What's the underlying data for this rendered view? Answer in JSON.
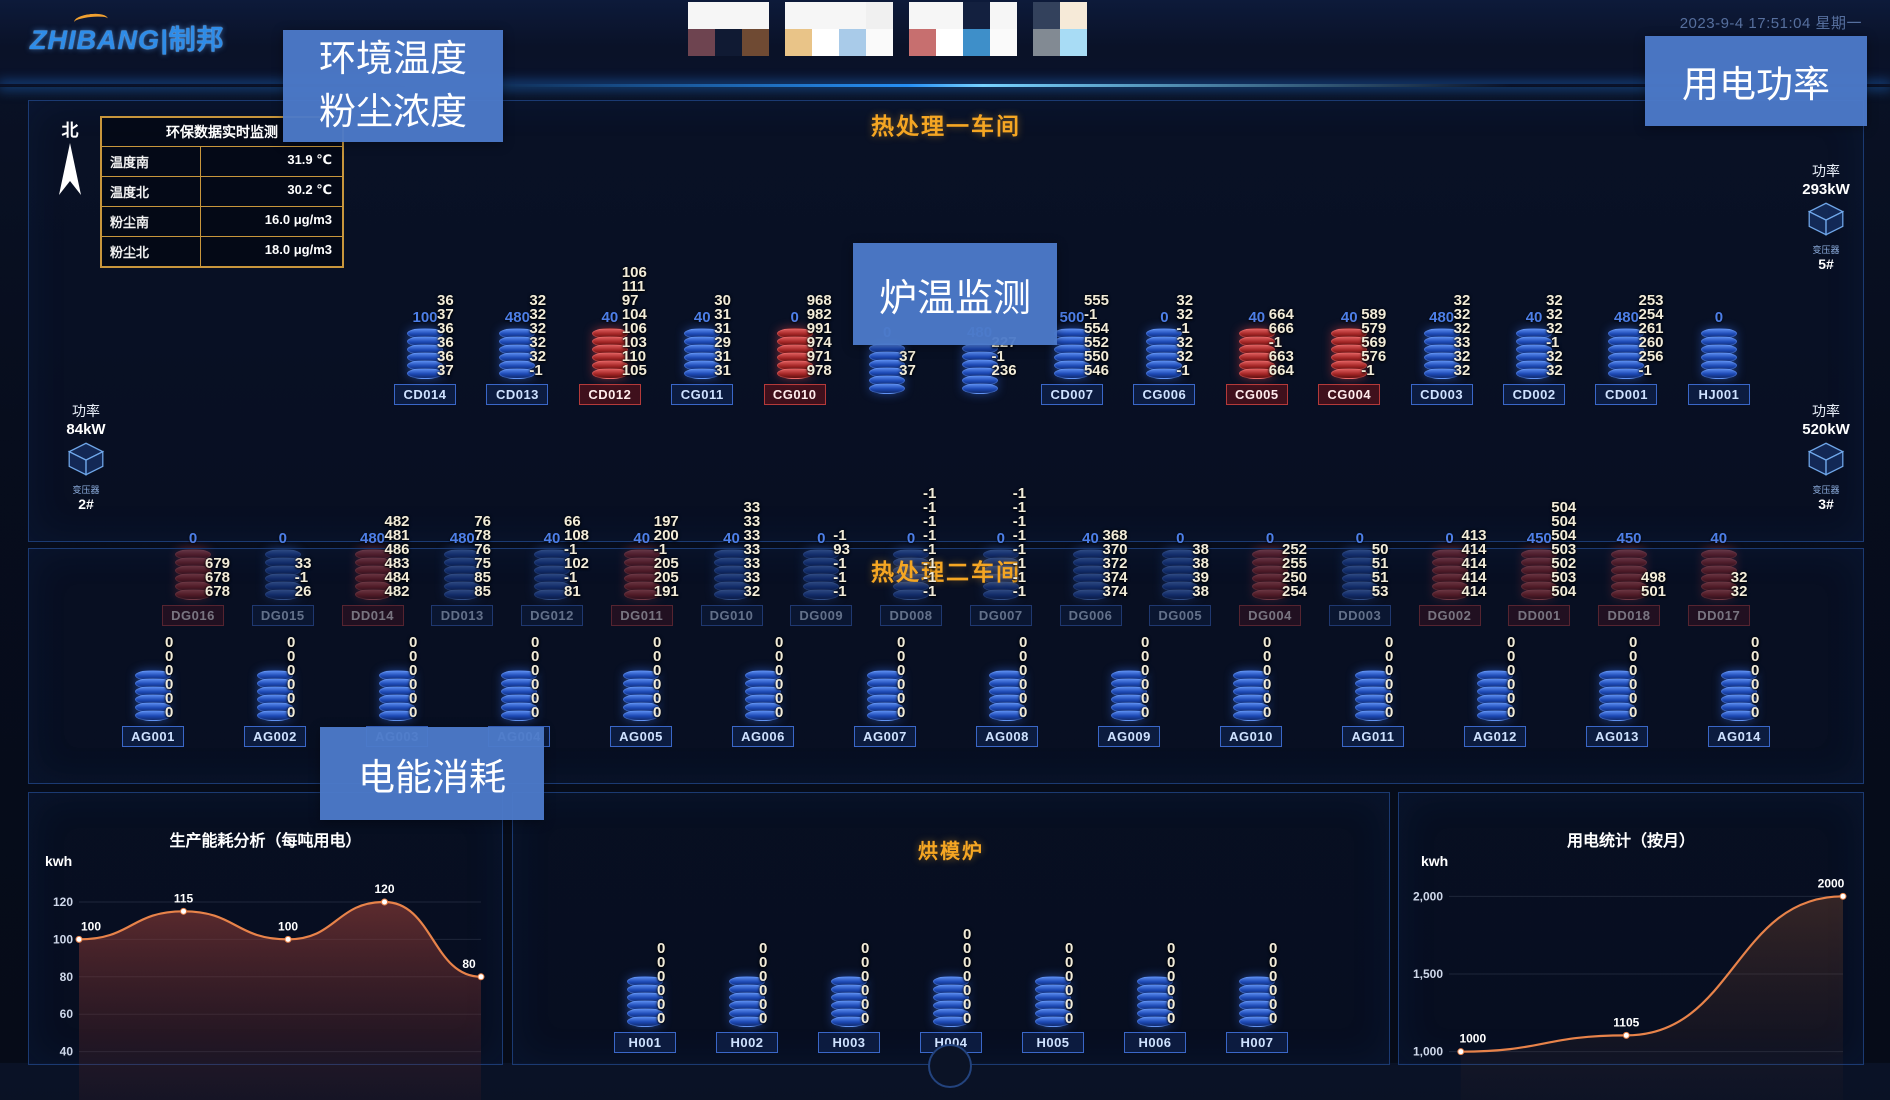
{
  "header": {
    "logo_en": "ZHIBANG",
    "logo_divider": "|",
    "logo_cn": "制邦",
    "timestamp": "2023-9-4 17:51:04 星期一",
    "mosaic_cards": [
      {
        "rows": [
          [
            "#f6f6f6",
            "#f6f6f6",
            "#f6f6f6"
          ],
          [
            "#6e4450",
            "#101a33",
            "#6f4a33"
          ]
        ]
      },
      {
        "rows": [
          [
            "#f6f6f6",
            "#f6f6f6",
            "#f6f6f6",
            "#f0f0f0"
          ],
          [
            "#e9c488",
            "#ffffff",
            "#a9cbe9",
            "#fafafa"
          ]
        ]
      },
      {
        "rows": [
          [
            "#f6f6f6",
            "#f6f6f6",
            "#13203f",
            "#f6f6f6"
          ],
          [
            "#c76f6f",
            "#ffffff",
            "#3e8fc9",
            "#fafafa"
          ]
        ]
      },
      {
        "rows": [
          [
            "#33415c",
            "#f6ead8"
          ],
          [
            "#828a93",
            "#a8dcf5"
          ]
        ]
      }
    ]
  },
  "overlays": {
    "env_line1": "环境温度",
    "env_line2": "粉尘浓度",
    "power": "用电功率",
    "furnace_temp": "炉温监测",
    "energy": "电能消耗"
  },
  "compass": {
    "north": "北"
  },
  "env_table": {
    "title": "环保数据实时监测",
    "rows": [
      {
        "label": "温度南",
        "value": "31.9 ℃"
      },
      {
        "label": "温度北",
        "value": "30.2 ℃"
      },
      {
        "label": "粉尘南",
        "value": "16.0 μg/m3"
      },
      {
        "label": "粉尘北",
        "value": "18.0 μg/m3"
      }
    ]
  },
  "workshop1": {
    "title": "热处理一车间",
    "power_row1_right": {
      "label": "功率",
      "value": "293kW",
      "device": "变压器",
      "unit": "5#"
    },
    "power_row2_left": {
      "label": "功率",
      "value": "84kW",
      "device": "变压器",
      "unit": "2#"
    },
    "power_row2_right": {
      "label": "功率",
      "value": "520kW",
      "device": "变压器",
      "unit": "3#"
    },
    "row1": [
      {
        "id": "CD014",
        "setpoint": "100",
        "color": "blue",
        "values": [
          "36",
          "37",
          "36",
          "36",
          "36",
          "37"
        ]
      },
      {
        "id": "CD013",
        "setpoint": "480",
        "color": "blue",
        "values": [
          "32",
          "32",
          "32",
          "32",
          "32",
          "-1"
        ]
      },
      {
        "id": "CD012",
        "setpoint": "40",
        "color": "red",
        "values": [
          "106",
          "111",
          "97",
          "104",
          "106",
          "103",
          "110",
          "105"
        ]
      },
      {
        "id": "CG011",
        "setpoint": "40",
        "color": "blue",
        "values": [
          "30",
          "31",
          "31",
          "29",
          "31",
          "31"
        ]
      },
      {
        "id": "CG010",
        "setpoint": "0",
        "color": "red",
        "values": [
          "968",
          "982",
          "991",
          "974",
          "971",
          "978"
        ]
      },
      {
        "id": "",
        "setpoint": "0",
        "color": "blue",
        "values": [
          "37",
          "37"
        ]
      },
      {
        "id": "",
        "setpoint": "480",
        "color": "blue",
        "values": [
          "227",
          "-1",
          "236"
        ]
      },
      {
        "id": "CD007",
        "setpoint": "500",
        "color": "blue",
        "values": [
          "555",
          "-1",
          "554",
          "552",
          "550",
          "546"
        ]
      },
      {
        "id": "CG006",
        "setpoint": "0",
        "color": "blue",
        "values": [
          "32",
          "32",
          "-1",
          "32",
          "32",
          "-1"
        ]
      },
      {
        "id": "CG005",
        "setpoint": "40",
        "color": "red",
        "values": [
          "664",
          "666",
          "-1",
          "663",
          "664"
        ]
      },
      {
        "id": "CG004",
        "setpoint": "40",
        "color": "red",
        "values": [
          "589",
          "579",
          "569",
          "576",
          "-1"
        ]
      },
      {
        "id": "CD003",
        "setpoint": "480",
        "color": "blue",
        "values": [
          "32",
          "32",
          "32",
          "33",
          "32",
          "32"
        ]
      },
      {
        "id": "CD002",
        "setpoint": "40",
        "color": "blue",
        "values": [
          "32",
          "32",
          "32",
          "-1",
          "32",
          "32"
        ]
      },
      {
        "id": "CD001",
        "setpoint": "480",
        "color": "blue",
        "values": [
          "253",
          "254",
          "261",
          "260",
          "256",
          "-1"
        ]
      },
      {
        "id": "HJ001",
        "setpoint": "0",
        "color": "blue",
        "values": []
      }
    ],
    "row2": [
      {
        "id": "DG016",
        "setpoint": "0",
        "color": "red",
        "values": [
          "679",
          "678",
          "678"
        ]
      },
      {
        "id": "DG015",
        "setpoint": "0",
        "color": "blue",
        "values": [
          "33",
          "-1",
          "26"
        ]
      },
      {
        "id": "DD014",
        "setpoint": "480",
        "color": "red",
        "values": [
          "482",
          "481",
          "486",
          "483",
          "484",
          "482"
        ]
      },
      {
        "id": "DD013",
        "setpoint": "480",
        "color": "blue",
        "values": [
          "76",
          "78",
          "76",
          "75",
          "85",
          "85"
        ]
      },
      {
        "id": "DG012",
        "setpoint": "40",
        "color": "blue",
        "values": [
          "66",
          "108",
          "-1",
          "102",
          "-1",
          "81"
        ]
      },
      {
        "id": "DG011",
        "setpoint": "40",
        "color": "red",
        "values": [
          "197",
          "200",
          "-1",
          "205",
          "205",
          "191"
        ]
      },
      {
        "id": "DG010",
        "setpoint": "40",
        "color": "blue",
        "values": [
          "33",
          "33",
          "33",
          "33",
          "33",
          "33",
          "32"
        ]
      },
      {
        "id": "DG009",
        "setpoint": "0",
        "color": "blue",
        "values": [
          "-1",
          "93",
          "-1",
          "-1",
          "-1"
        ]
      },
      {
        "id": "DD008",
        "setpoint": "0",
        "color": "blue",
        "values": [
          "-1",
          "-1",
          "-1",
          "-1",
          "-1",
          "-1",
          "-1",
          "-1"
        ]
      },
      {
        "id": "DG007",
        "setpoint": "0",
        "color": "blue",
        "values": [
          "-1",
          "-1",
          "-1",
          "-1",
          "-1",
          "-1",
          "-1",
          "-1"
        ]
      },
      {
        "id": "DG006",
        "setpoint": "40",
        "color": "blue",
        "values": [
          "368",
          "370",
          "372",
          "374",
          "374"
        ]
      },
      {
        "id": "DG005",
        "setpoint": "0",
        "color": "blue",
        "values": [
          "38",
          "38",
          "39",
          "38"
        ]
      },
      {
        "id": "DG004",
        "setpoint": "0",
        "color": "red",
        "values": [
          "252",
          "255",
          "250",
          "254"
        ]
      },
      {
        "id": "DD003",
        "setpoint": "0",
        "color": "blue",
        "values": [
          "50",
          "51",
          "51",
          "53"
        ]
      },
      {
        "id": "DG002",
        "setpoint": "0",
        "color": "red",
        "values": [
          "413",
          "414",
          "414",
          "414",
          "414"
        ]
      },
      {
        "id": "DD001",
        "setpoint": "450",
        "color": "red",
        "values": [
          "504",
          "504",
          "504",
          "503",
          "502",
          "503",
          "504"
        ]
      },
      {
        "id": "DD018",
        "setpoint": "450",
        "color": "red",
        "values": [
          "498",
          "501"
        ]
      },
      {
        "id": "DD017",
        "setpoint": "40",
        "color": "red",
        "values": [
          "32",
          "32"
        ]
      }
    ]
  },
  "workshop2": {
    "title": "热处理二车间",
    "furnaces": [
      {
        "id": "AG001",
        "values": [
          "0",
          "0",
          "0",
          "0",
          "0",
          "0"
        ]
      },
      {
        "id": "AG002",
        "values": [
          "0",
          "0",
          "0",
          "0",
          "0",
          "0"
        ]
      },
      {
        "id": "AG003",
        "values": [
          "0",
          "0",
          "0",
          "0",
          "0",
          "0"
        ]
      },
      {
        "id": "AG004",
        "values": [
          "0",
          "0",
          "0",
          "0",
          "0",
          "0"
        ]
      },
      {
        "id": "AG005",
        "values": [
          "0",
          "0",
          "0",
          "0",
          "0",
          "0"
        ]
      },
      {
        "id": "AG006",
        "values": [
          "0",
          "0",
          "0",
          "0",
          "0",
          "0"
        ]
      },
      {
        "id": "AG007",
        "values": [
          "0",
          "0",
          "0",
          "0",
          "0",
          "0"
        ]
      },
      {
        "id": "AG008",
        "values": [
          "0",
          "0",
          "0",
          "0",
          "0",
          "0"
        ]
      },
      {
        "id": "AG009",
        "values": [
          "0",
          "0",
          "0",
          "0",
          "0",
          "0"
        ]
      },
      {
        "id": "AG010",
        "values": [
          "0",
          "0",
          "0",
          "0",
          "0",
          "0"
        ]
      },
      {
        "id": "AG011",
        "values": [
          "0",
          "0",
          "0",
          "0",
          "0",
          "0"
        ]
      },
      {
        "id": "AG012",
        "values": [
          "0",
          "0",
          "0",
          "0",
          "0",
          "0"
        ]
      },
      {
        "id": "AG013",
        "values": [
          "0",
          "0",
          "0",
          "0",
          "0",
          "0"
        ]
      },
      {
        "id": "AG014",
        "values": [
          "0",
          "0",
          "0",
          "0",
          "0",
          "0"
        ]
      }
    ]
  },
  "oven": {
    "title": "烘模炉",
    "furnaces": [
      {
        "id": "H001",
        "values": [
          "0",
          "0",
          "0",
          "0",
          "0",
          "0"
        ]
      },
      {
        "id": "H002",
        "values": [
          "0",
          "0",
          "0",
          "0",
          "0",
          "0"
        ]
      },
      {
        "id": "H003",
        "values": [
          "0",
          "0",
          "0",
          "0",
          "0",
          "0"
        ]
      },
      {
        "id": "H004",
        "values": [
          "0",
          "0",
          "0",
          "0",
          "0",
          "0",
          "0"
        ]
      },
      {
        "id": "H005",
        "values": [
          "0",
          "0",
          "0",
          "0",
          "0",
          "0"
        ]
      },
      {
        "id": "H006",
        "values": [
          "0",
          "0",
          "0",
          "0",
          "0",
          "0"
        ]
      },
      {
        "id": "H007",
        "values": [
          "0",
          "0",
          "0",
          "0",
          "0",
          "0"
        ]
      }
    ]
  },
  "chart_data": [
    {
      "type": "line",
      "title": "生产能耗分析（每吨用电）",
      "ylabel": "kwh",
      "xlabel": "",
      "ylim": [
        35,
        128
      ],
      "yticks": [
        {
          "v": 120,
          "label": "120"
        },
        {
          "v": 100,
          "label": "100"
        },
        {
          "v": 80,
          "label": "80"
        },
        {
          "v": 60,
          "label": "60"
        },
        {
          "v": 40,
          "label": "40"
        }
      ],
      "points": [
        {
          "x": 0.0,
          "y": 100,
          "label": "100"
        },
        {
          "x": 0.26,
          "y": 115,
          "label": "115"
        },
        {
          "x": 0.52,
          "y": 100,
          "label": "100"
        },
        {
          "x": 0.76,
          "y": 120,
          "label": "120"
        },
        {
          "x": 1.0,
          "y": 80,
          "label": "80"
        }
      ],
      "grid": true,
      "line_color": "#e8834a",
      "fill_top": "rgba(150,62,55,0.60)",
      "fill_bottom": "rgba(90,35,35,0.15)"
    },
    {
      "type": "line",
      "title": "用电统计（按月）",
      "ylabel": "kwh",
      "xlabel": "",
      "ylim": [
        940,
        2060
      ],
      "yticks": [
        {
          "v": 2000,
          "label": "2,000"
        },
        {
          "v": 1500,
          "label": "1,500"
        },
        {
          "v": 1000,
          "label": "1,000"
        }
      ],
      "points": [
        {
          "x": 0.03,
          "y": 1000,
          "label": "1000"
        },
        {
          "x": 0.45,
          "y": 1105,
          "label": "1105"
        },
        {
          "x": 1.0,
          "y": 2000,
          "label": "2000"
        }
      ],
      "grid": true,
      "line_color": "#e8834a",
      "fill_top": "rgba(160,90,50,0.30)",
      "fill_bottom": "rgba(90,50,35,0.05)"
    }
  ]
}
